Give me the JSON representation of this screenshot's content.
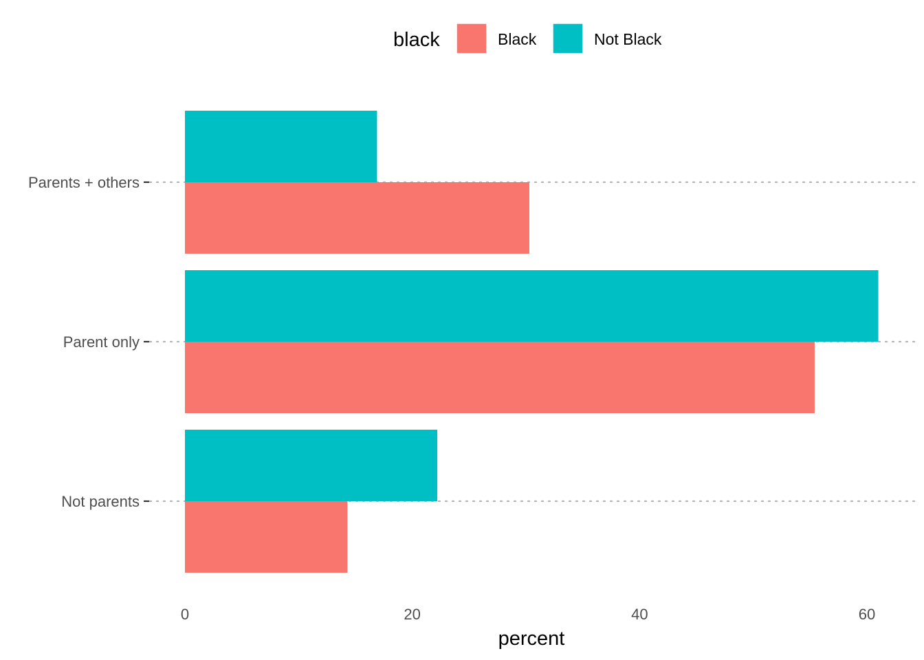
{
  "chart_data": {
    "type": "bar",
    "orientation": "horizontal",
    "categories": [
      "Parents + others",
      "Parent only",
      "Not parents"
    ],
    "series": [
      {
        "name": "Black",
        "values": [
          30.3,
          55.4,
          14.3
        ],
        "color": "#F8766D"
      },
      {
        "name": "Not Black",
        "values": [
          16.9,
          61.0,
          22.2
        ],
        "color": "#00BFC4"
      }
    ],
    "xlabel": "percent",
    "ylabel": "",
    "xlim": [
      0,
      61.0
    ],
    "xticks": [
      0,
      20,
      40,
      60
    ],
    "legend_title": "black",
    "legend_position": "top",
    "grid": "horizontal dotted at categories"
  }
}
